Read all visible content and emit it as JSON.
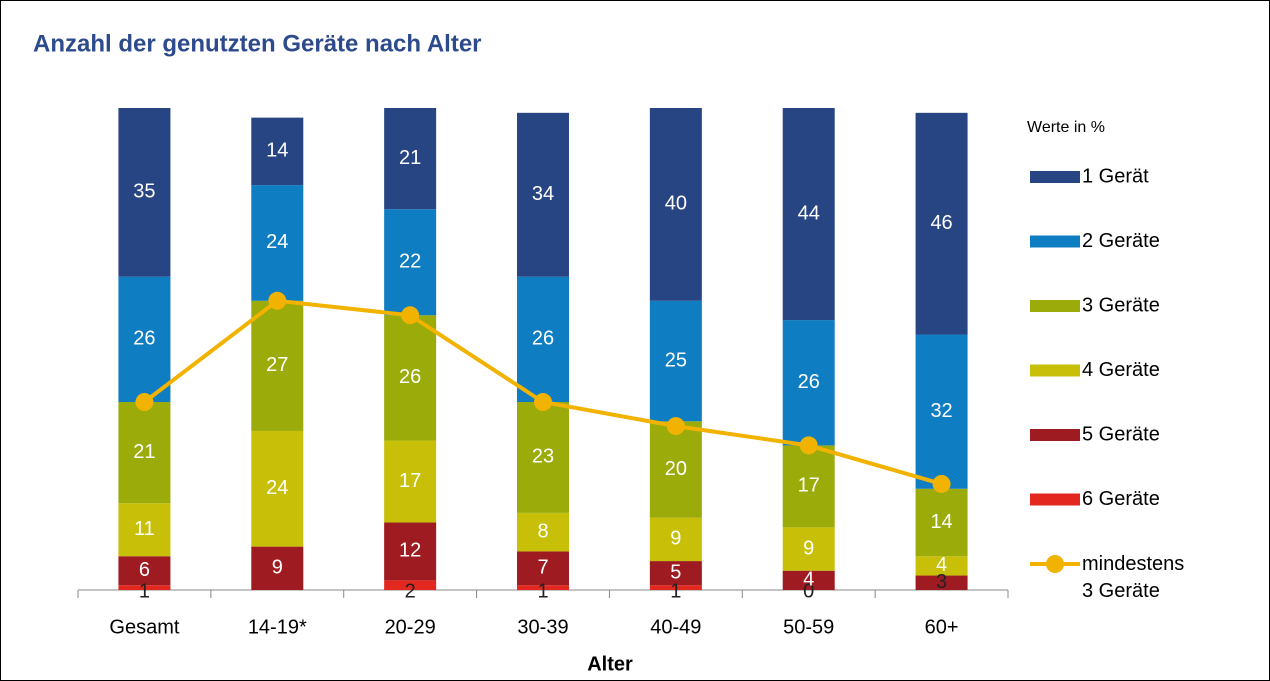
{
  "chart_data": {
    "type": "bar",
    "stacked": true,
    "title": "Anzahl der genutzten Geräte nach Alter",
    "subtitle": "Werte in %",
    "x_label": "Alter",
    "categories": [
      "Gesamt",
      "14-19*",
      "20-29",
      "30-39",
      "40-49",
      "50-59",
      "60+"
    ],
    "ylim": [
      0,
      100
    ],
    "series": [
      {
        "name": "1 Gerät",
        "color": "#284583",
        "values": [
          35,
          14,
          21,
          34,
          40,
          44,
          46
        ]
      },
      {
        "name": "2 Geräte",
        "color": "#0f7dc2",
        "values": [
          26,
          24,
          22,
          26,
          25,
          26,
          32
        ]
      },
      {
        "name": "3 Geräte",
        "color": "#9aab0a",
        "values": [
          21,
          27,
          26,
          23,
          20,
          17,
          14
        ]
      },
      {
        "name": "4 Geräte",
        "color": "#c7bf08",
        "values": [
          11,
          24,
          17,
          8,
          9,
          9,
          4
        ]
      },
      {
        "name": "5 Geräte",
        "color": "#9e1b22",
        "values": [
          6,
          9,
          12,
          7,
          5,
          4,
          3
        ]
      },
      {
        "name": "6 Geräte",
        "color": "#e2281f",
        "values": [
          1,
          null,
          2,
          1,
          1,
          0,
          null
        ]
      },
      {
        "name": "mindestens 3 Geräte",
        "type": "line",
        "color": "#f2b200",
        "values": [
          39,
          60,
          57,
          39,
          34,
          30,
          22
        ]
      }
    ]
  }
}
